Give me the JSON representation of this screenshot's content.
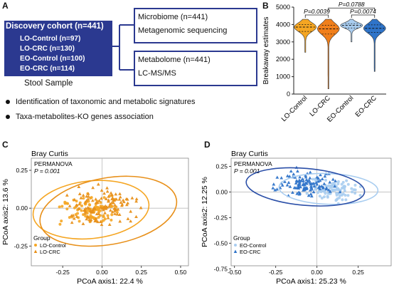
{
  "panel_a": {
    "label": "A",
    "cohort": {
      "title": "Discovery cohort (n=441)",
      "groups": [
        "LO-Control (n=97)",
        "LO-CRC (n=130)",
        "EO-Control (n=100)",
        "EO-CRC (n=114)"
      ]
    },
    "sample_label": "Stool Sample",
    "microbiome_box": {
      "line1": "Microbiome (n=441)",
      "line2": "Metagenomic sequencing"
    },
    "metabolome_box": {
      "line1": "Metabolome (n=441)",
      "line2": "LC-MS/MS"
    },
    "bullets": [
      "Identification of taxonomic and metabolic signatures",
      "Taxa-metabolites-KO genes association"
    ]
  },
  "panel_b": {
    "label": "B",
    "pvalues": [
      "P=0.0039",
      "P=0.0074",
      "P=0.0788"
    ]
  },
  "panel_c": {
    "label": "C",
    "title": "Bray Curtis",
    "test_name": "PERMANOVA",
    "pvalue_text": "P = 0.001",
    "legend_title": "Group",
    "legend_items": [
      "LO-Control",
      "LO-CRC"
    ]
  },
  "panel_d": {
    "label": "D",
    "title": "Bray Curtis",
    "test_name": "PERMANOVA",
    "pvalue_text": "P = 0.001",
    "legend_title": "Group",
    "legend_items": [
      "EO-Control",
      "EO-CRC"
    ]
  },
  "chart_data": [
    {
      "type": "violin",
      "panel": "B",
      "ylabel": "Breakaway estimates",
      "ylim": [
        0,
        5000
      ],
      "yticks": [
        0,
        1000,
        2000,
        3000,
        4000,
        5000
      ],
      "categories": [
        "LO-Control",
        "LO-CRC",
        "EO-Control",
        "EO-CRC"
      ],
      "series": [
        {
          "name": "LO-Control",
          "color": "#f5a623",
          "median": 3850,
          "q1": 3600,
          "q3": 4000,
          "min": 2400,
          "max": 4300
        },
        {
          "name": "LO-CRC",
          "color": "#f07f1b",
          "median": 3750,
          "q1": 3450,
          "q3": 3950,
          "min": 300,
          "max": 4300
        },
        {
          "name": "EO-Control",
          "color": "#a9cdf0",
          "median": 3950,
          "q1": 3800,
          "q3": 4050,
          "min": 3000,
          "max": 4300
        },
        {
          "name": "EO-CRC",
          "color": "#2f74c9",
          "median": 3780,
          "q1": 3550,
          "q3": 3980,
          "min": 1300,
          "max": 4300
        }
      ],
      "comparisons": [
        {
          "from": "LO-Control",
          "to": "LO-CRC",
          "p": "P=0.0039"
        },
        {
          "from": "EO-Control",
          "to": "EO-CRC",
          "p": "P=0.0074"
        },
        {
          "from": "LO-CRC",
          "to": "EO-CRC",
          "p": "P=0.0788"
        }
      ]
    },
    {
      "type": "scatter",
      "panel": "C",
      "title": "Bray Curtis",
      "xlabel": "PCoA axis1:  22.4 %",
      "ylabel": "PCoA axis2:  13.6 %",
      "xlim": [
        -0.45,
        0.55
      ],
      "ylim": [
        -0.38,
        0.33
      ],
      "xticks": [
        -0.25,
        0.0,
        0.25,
        0.5
      ],
      "xticklabels": [
        "-0.25",
        "0.00",
        "0.25",
        "0.50"
      ],
      "yticks": [
        -0.25,
        0.0,
        0.25
      ],
      "yticklabels": [
        "-0.25",
        "0.00",
        "0.25"
      ],
      "series": [
        {
          "name": "LO-Control",
          "color": "#f5a623",
          "marker": "circle",
          "center": [
            -0.05,
            -0.01
          ],
          "spread": [
            0.17,
            0.09
          ]
        },
        {
          "name": "LO-CRC",
          "color": "#e8901a",
          "marker": "triangle",
          "center": [
            0.02,
            0.01
          ],
          "spread": [
            0.21,
            0.12
          ]
        }
      ],
      "ellipses": [
        {
          "color": "#f5a623",
          "cx": -0.07,
          "cy": -0.01,
          "rx": 0.37,
          "ry": 0.19,
          "angle": -6
        },
        {
          "color": "#e8901a",
          "cx": 0.04,
          "cy": -0.02,
          "rx": 0.44,
          "ry": 0.22,
          "angle": -10
        }
      ]
    },
    {
      "type": "scatter",
      "panel": "D",
      "title": "Bray Curtis",
      "xlabel": "PCoA axis1:  25.23 %",
      "ylabel": "PCoA axis2:  12.25 %",
      "xlim": [
        -0.52,
        0.45
      ],
      "ylim": [
        -0.72,
        0.33
      ],
      "xticks": [
        -0.5,
        -0.25,
        0.0,
        0.25
      ],
      "xticklabels": [
        "-0.50",
        "-0.25",
        "0.00",
        "0.25"
      ],
      "yticks": [
        -0.75,
        -0.5,
        -0.25,
        0.0,
        0.25
      ],
      "yticklabels": [
        "-0.75",
        "-0.50",
        "-0.25",
        "0.00",
        "0.25"
      ],
      "series": [
        {
          "name": "EO-Control",
          "color": "#a9cdf0",
          "marker": "circle",
          "center": [
            0.1,
            0.02
          ],
          "spread": [
            0.16,
            0.1
          ]
        },
        {
          "name": "EO-CRC",
          "color": "#2f74c9",
          "marker": "triangle",
          "center": [
            -0.08,
            0.08
          ],
          "spread": [
            0.18,
            0.12
          ]
        }
      ],
      "ellipses": [
        {
          "color": "#a9cdf0",
          "cx": 0.07,
          "cy": 0.03,
          "rx": 0.3,
          "ry": 0.15,
          "angle": 2
        },
        {
          "color": "#2b4fa8",
          "cx": -0.07,
          "cy": 0.05,
          "rx": 0.36,
          "ry": 0.18,
          "angle": 5
        }
      ]
    }
  ]
}
